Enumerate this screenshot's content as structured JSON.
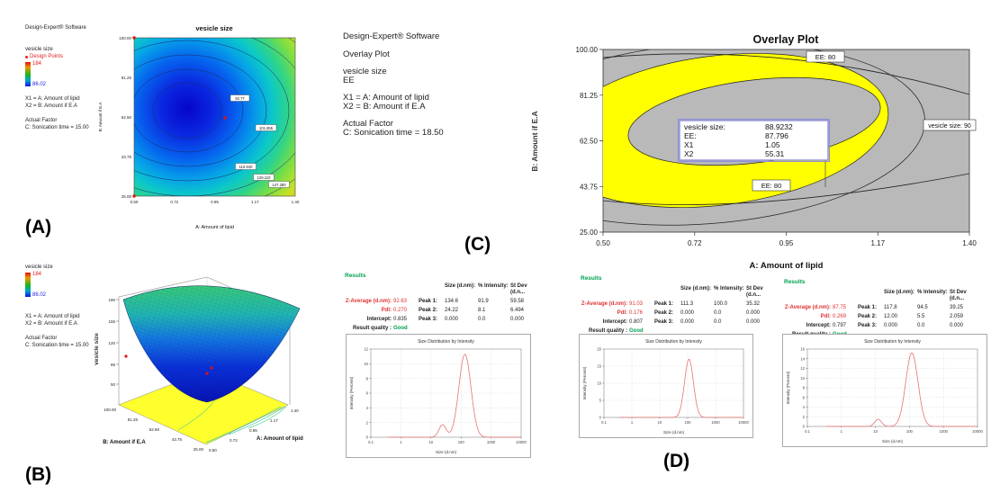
{
  "figure": {
    "labels": {
      "A": "(A)",
      "B": "(B)",
      "C": "(C)",
      "D": "(D)"
    }
  },
  "panelA": {
    "sidebar": {
      "software": "Design-Expert® Software",
      "response": "vesicle size",
      "design_points": "Design Points",
      "scale_max": "184",
      "scale_min": "86.02",
      "x1": "X1 = A: Amount of lipid",
      "x2": "X2 = B: Amount if E.A",
      "actual_factor": "Actual Factor",
      "factor": "C: Sonication time = 15.00"
    }
  },
  "panelB": {
    "sidebar": {
      "response": "vesicle size",
      "scale_max": "184",
      "scale_min": "86.02",
      "x1": "X1 = A: Amount of lipid",
      "x2": "X2 = B: Amount if E.A",
      "actual_factor": "Actual Factor",
      "factor": "C: Sonication time = 15.00"
    }
  },
  "panelC": {
    "sidebar": {
      "software": "Design-Expert® Software",
      "plot_type": "Overlay Plot",
      "response1": "vesicle size",
      "response2": "EE",
      "x1": "X1 = A: Amount of lipid",
      "x2": "X2 = B: Amount if E.A",
      "actual_factor": "Actual Factor",
      "factor": "C: Sonication time = 18.50"
    }
  },
  "panelD": {
    "results": [
      {
        "header": "Results",
        "columns": [
          "Size (d.nm):",
          "% Intensity:",
          "St Dev (d.n..."
        ],
        "zavg_label": "Z-Average (d.nm):",
        "zavg": "92.63",
        "pdi_label": "PdI:",
        "pdi": "0.270",
        "intercept_label": "Intercept:",
        "intercept": "0.835",
        "quality_label": "Result quality :",
        "quality": "Good",
        "peaks": [
          [
            "Peak 1:",
            "134.6",
            "91.9",
            "59.58"
          ],
          [
            "Peak 2:",
            "24.22",
            "8.1",
            "6.494"
          ],
          [
            "Peak 3:",
            "0.000",
            "0.0",
            "0.000"
          ]
        ]
      },
      {
        "header": "Results",
        "columns": [
          "Size (d.nm):",
          "% Intensity:",
          "St Dev (d.n..."
        ],
        "zavg_label": "Z-Average (d.nm):",
        "zavg": "91.03",
        "pdi_label": "PdI:",
        "pdi": "0.176",
        "intercept_label": "Intercept:",
        "intercept": "0.807",
        "quality_label": "Result quality :",
        "quality": "Good",
        "peaks": [
          [
            "Peak 1:",
            "111.3",
            "100.0",
            "35.32"
          ],
          [
            "Peak 2:",
            "0.000",
            "0.0",
            "0.000"
          ],
          [
            "Peak 3:",
            "0.000",
            "0.0",
            "0.000"
          ]
        ]
      },
      {
        "header": "Results",
        "columns": [
          "Size (d.nm):",
          "% Intensity:",
          "St Dev (d.n..."
        ],
        "zavg_label": "Z-Average (d.nm):",
        "zavg": "87.75",
        "pdi_label": "PdI:",
        "pdi": "0.269",
        "intercept_label": "Intercept:",
        "intercept": "0.797",
        "quality_label": "Result quality :",
        "quality": "Good",
        "peaks": [
          [
            "Peak 1:",
            "117.8",
            "94.5",
            "39.25"
          ],
          [
            "Peak 2:",
            "12.00",
            "5.5",
            "2.059"
          ],
          [
            "Peak 3:",
            "0.000",
            "0.0",
            "0.000"
          ]
        ]
      }
    ]
  },
  "chart_data": [
    {
      "type": "contour",
      "title": "vesicle size",
      "xlabel": "A: Amount of lipid",
      "ylabel": "B: Amount if E.A",
      "xlim": [
        0.5,
        1.4
      ],
      "ylim": [
        25,
        100
      ],
      "xticks": [
        "0.50",
        "0.72",
        "0.95",
        "1.17",
        "1.40"
      ],
      "yticks": [
        "100.00",
        "81.25",
        "62.50",
        "43.75",
        "25.00"
      ],
      "response_range": [
        86.02,
        184
      ],
      "contour_labels": [
        "92.77",
        "101.855",
        "110.940",
        "129.110",
        "147.280"
      ],
      "design_point": {
        "x": 1.0,
        "y": 62.5
      },
      "palette": [
        "#0606c8",
        "#06a2e8",
        "#30d488",
        "#c0e228",
        "#ff9410"
      ]
    },
    {
      "type": "surface",
      "zlabel": "vesicle size",
      "zticks": [
        "190",
        "155",
        "120",
        "85",
        "50"
      ],
      "zlim": [
        50,
        190
      ],
      "xlabel": "A: Amount of lipid",
      "ylabel": "B: Amount if E.A",
      "xticks": [
        "0.50",
        "0.72",
        "0.95",
        "1.17",
        "1.40"
      ],
      "yticks": [
        "100.00",
        "81.25",
        "62.50",
        "43.75",
        "25.00"
      ],
      "floor_color": "#ffff2e"
    },
    {
      "type": "overlay",
      "title": "Overlay Plot",
      "xlabel": "A: Amount of lipid",
      "ylabel": "B: Amount if E.A",
      "xlim": [
        0.5,
        1.4
      ],
      "ylim": [
        25,
        100
      ],
      "xticks": [
        "0.50",
        "0.72",
        "0.95",
        "1.17",
        "1.40"
      ],
      "yticks": [
        "100.00",
        "81.25",
        "62.50",
        "43.75",
        "25.00"
      ],
      "flags": {
        "top": "EE: 80",
        "right": "vesicle size: 90",
        "bottom": "EE: 80"
      },
      "info_box": {
        "rows": [
          [
            "vesicle size:",
            "88.9232"
          ],
          [
            "EE:",
            "87.796"
          ],
          [
            "X1",
            "1.05"
          ],
          [
            "X2",
            "55.31"
          ]
        ]
      },
      "feasible_region_color": "#ffff00",
      "background_color": "#b9b9b9"
    },
    {
      "type": "line",
      "title": "Size Distribution by Intensity",
      "xlabel": "Size (d.nm)",
      "ylabel": "Intensity (Percent)",
      "xscale": "log",
      "xlim": [
        0.1,
        10000
      ],
      "xticks": [
        "0.1",
        "1",
        "10",
        "100",
        "1000",
        "10000"
      ],
      "ylim": [
        0,
        12
      ],
      "ytick_step": 2,
      "series_color": "#e87272",
      "peaks": [
        {
          "center_dnm": 24.22,
          "height_pct": 1.7,
          "log_sigma": 0.12
        },
        {
          "center_dnm": 134.6,
          "height_pct": 11.3,
          "log_sigma": 0.2
        }
      ]
    },
    {
      "type": "line",
      "title": "Size Distribution by Intensity",
      "xlabel": "Size (d.nm)",
      "ylabel": "Intensity (Percent)",
      "xscale": "log",
      "xlim": [
        0.1,
        10000
      ],
      "xticks": [
        "0.1",
        "1",
        "10",
        "100",
        "1000",
        "10000"
      ],
      "ylim": [
        0,
        20
      ],
      "ytick_step": 5,
      "series_color": "#e87272",
      "peaks": [
        {
          "center_dnm": 111.3,
          "height_pct": 17,
          "log_sigma": 0.16
        }
      ]
    },
    {
      "type": "line",
      "title": "Size Distribution by Intensity",
      "xlabel": "Size (d.nm)",
      "ylabel": "Intensity (Percent)",
      "xscale": "log",
      "xlim": [
        0.1,
        10000
      ],
      "xticks": [
        "0.1",
        "1",
        "10",
        "100",
        "1000",
        "10000"
      ],
      "ylim": [
        0,
        16
      ],
      "ytick_step": 2,
      "series_color": "#e87272",
      "peaks": [
        {
          "center_dnm": 12.0,
          "height_pct": 1.5,
          "log_sigma": 0.1
        },
        {
          "center_dnm": 117.8,
          "height_pct": 15.2,
          "log_sigma": 0.18
        }
      ]
    }
  ]
}
